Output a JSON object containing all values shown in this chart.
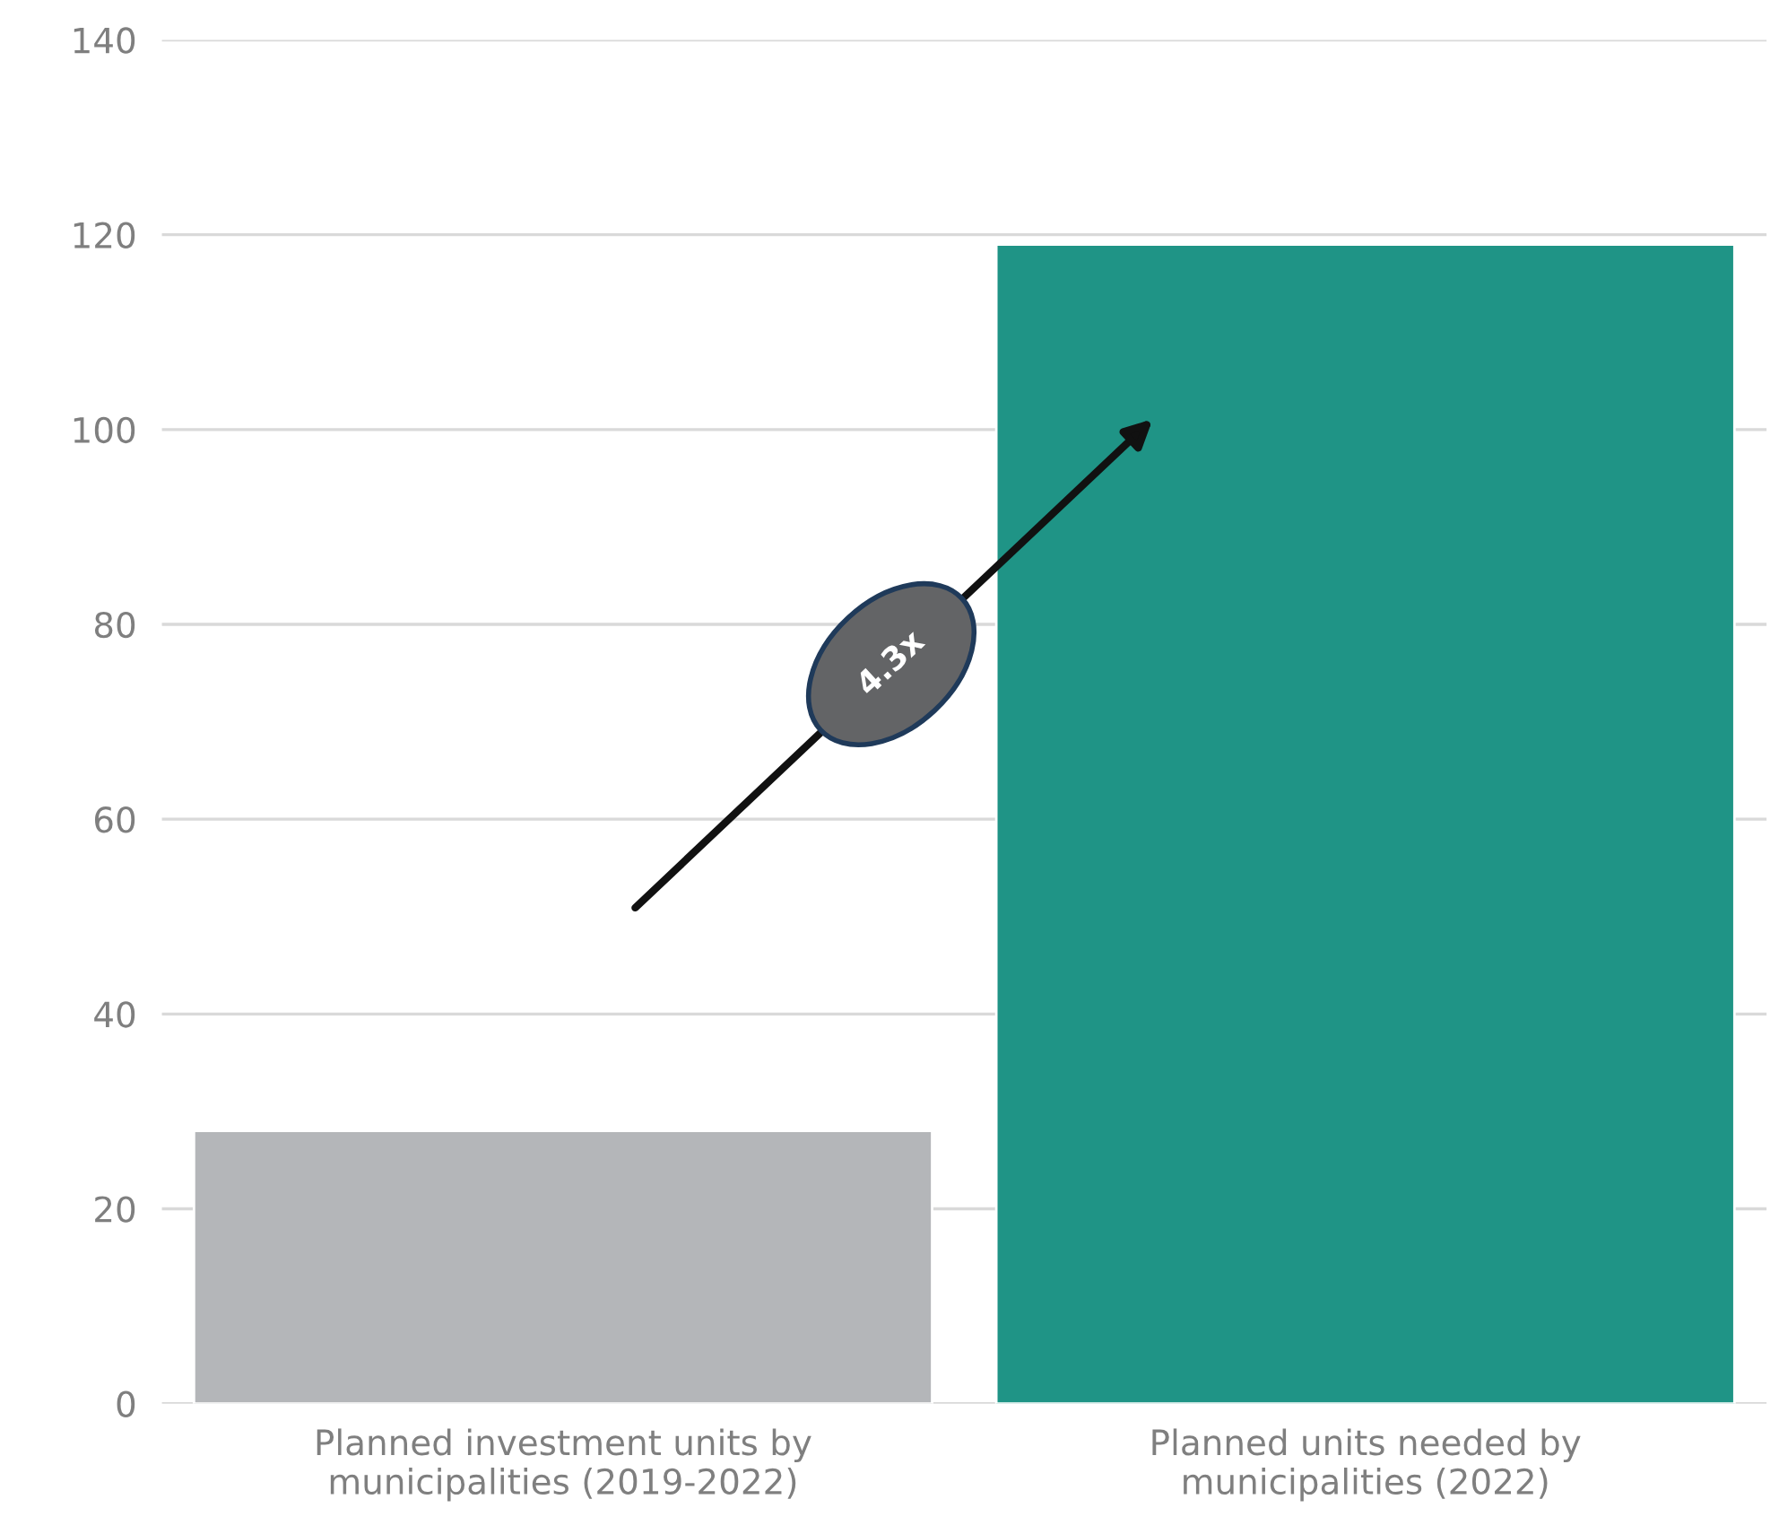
{
  "chart_data": {
    "type": "bar",
    "categories": [
      "Planned investment units by municipalities (2019-2022)",
      "Planned units needed by municipalities (2022)"
    ],
    "values": [
      28,
      119
    ],
    "colors": [
      "#b4b6b9",
      "#1f9486"
    ],
    "ylim": [
      0,
      140
    ],
    "yticks": [
      0,
      20,
      40,
      60,
      80,
      100,
      120,
      140
    ],
    "grid": "y",
    "legend": false,
    "annotations": [
      "4.3x"
    ]
  }
}
